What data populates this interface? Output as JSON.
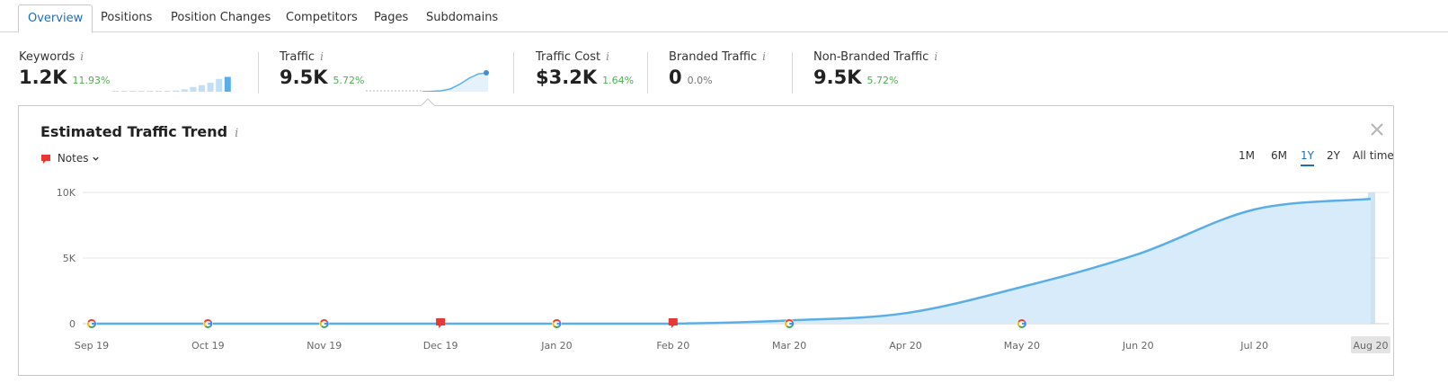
{
  "tabs": [
    {
      "label": "Overview",
      "active": true
    },
    {
      "label": "Positions",
      "active": false
    },
    {
      "label": "Position Changes",
      "active": false
    },
    {
      "label": "Competitors",
      "active": false
    },
    {
      "label": "Pages",
      "active": false
    },
    {
      "label": "Subdomains",
      "active": false
    }
  ],
  "metrics": {
    "keywords": {
      "label": "Keywords",
      "value": "1.2K",
      "delta": "11.93%",
      "sparkline": [
        0.02,
        0.02,
        0.02,
        0.02,
        0.02,
        0.03,
        0.04,
        0.06,
        0.12,
        0.24,
        0.33,
        0.45,
        0.65,
        0.75
      ]
    },
    "traffic": {
      "label": "Traffic",
      "value": "9.5K",
      "delta": "5.72%",
      "sparkline": [
        0,
        0,
        0,
        0,
        0,
        0,
        0,
        0.02,
        0.05,
        0.15,
        0.4,
        0.72,
        0.95,
        1.0
      ]
    },
    "traffic_cost": {
      "label": "Traffic Cost",
      "value": "$3.2K",
      "delta": "1.64%"
    },
    "branded_traffic": {
      "label": "Branded Traffic",
      "value": "0",
      "delta": "0.0%"
    },
    "non_branded_traffic": {
      "label": "Non-Branded Traffic",
      "value": "9.5K",
      "delta": "5.72%"
    }
  },
  "panel": {
    "title": "Estimated Traffic Trend",
    "notes_label": "Notes",
    "ranges": [
      {
        "label": "1M",
        "active": false
      },
      {
        "label": "6M",
        "active": false
      },
      {
        "label": "1Y",
        "active": true
      },
      {
        "label": "2Y",
        "active": false
      },
      {
        "label": "All time",
        "active": false
      }
    ]
  },
  "colors": {
    "accent": "#1a6ebd",
    "line": "#5aaee8",
    "area": "#d8ebfa",
    "positive": "#4caf50",
    "note_red": "#e53935"
  },
  "chart_data": {
    "type": "area",
    "x": [
      "Sep 19",
      "Oct 19",
      "Nov 19",
      "Dec 19",
      "Jan 20",
      "Feb 20",
      "Mar 20",
      "Apr 20",
      "May 20",
      "Jun 20",
      "Jul 20",
      "Aug 20"
    ],
    "y_ticks": [
      "0",
      "5K",
      "10K"
    ],
    "ylim": [
      0,
      10000
    ],
    "highlighted_x": "Aug 20",
    "series": [
      {
        "values": [
          0,
          0,
          0,
          0,
          0,
          0,
          250,
          800,
          2800,
          5300,
          8700,
          9500
        ]
      }
    ],
    "markers": [
      {
        "x": "Sep 19",
        "type": "google"
      },
      {
        "x": "Oct 19",
        "type": "google"
      },
      {
        "x": "Nov 19",
        "type": "google"
      },
      {
        "x": "Dec 19",
        "type": "note"
      },
      {
        "x": "Jan 20",
        "type": "google"
      },
      {
        "x": "Feb 20",
        "type": "note"
      },
      {
        "x": "Mar 20",
        "type": "google"
      },
      {
        "x": "May 20",
        "type": "google"
      }
    ],
    "grid": true
  }
}
